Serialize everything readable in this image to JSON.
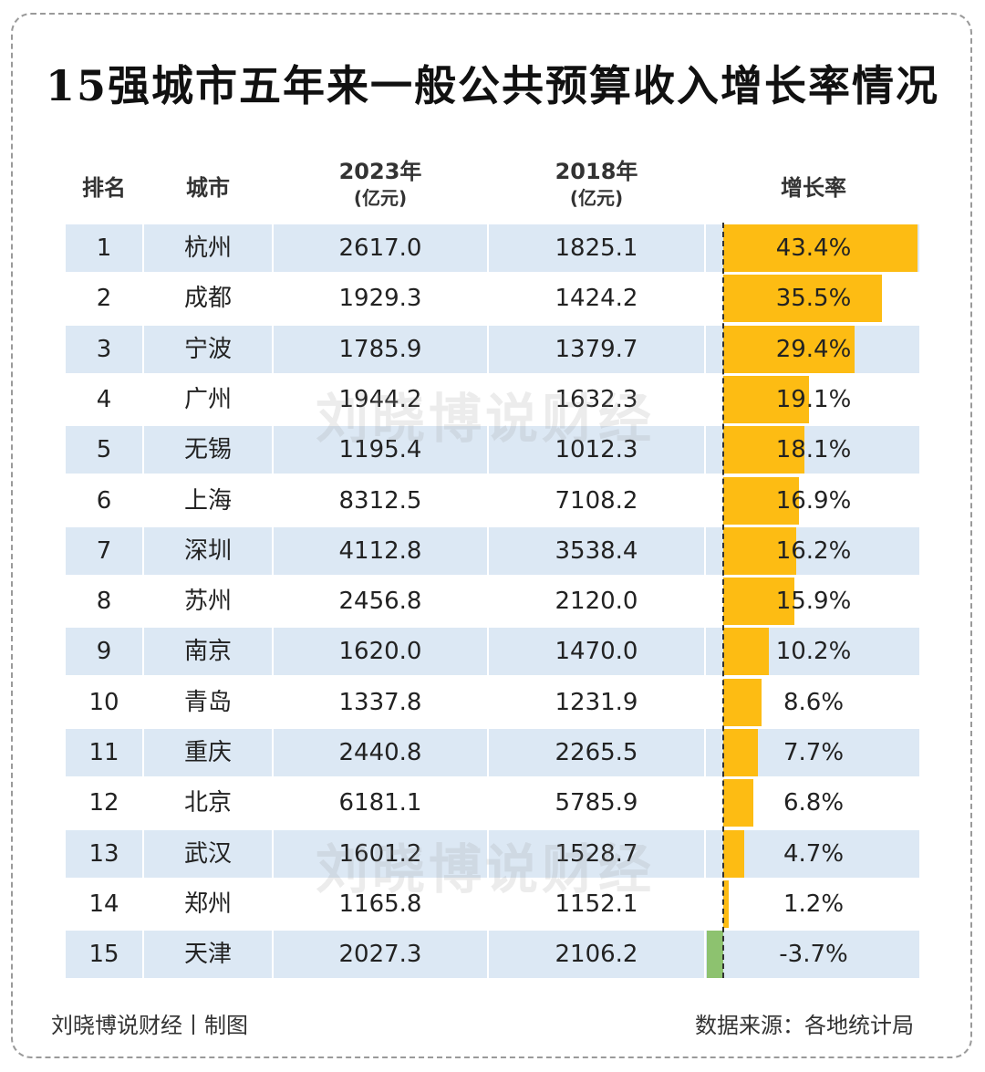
{
  "title": "15强城市五年来一般公共预算收入增长率情况",
  "headers": {
    "rank": "排名",
    "city": "城市",
    "y2023": "2023年",
    "y2023_unit": "(亿元)",
    "y2018": "2018年",
    "y2018_unit": "(亿元)",
    "growth": "增长率"
  },
  "watermark": "刘晓博说财经",
  "footer": {
    "left": "刘晓博说财经丨制图",
    "right": "数据来源：各地统计局"
  },
  "colors": {
    "positive_bar": "#fdbc13",
    "negative_bar": "#8dc26f",
    "row_band": "#dce8f4"
  },
  "chart_data": {
    "type": "bar",
    "title": "15强城市五年来一般公共预算收入增长率情况",
    "categories": [
      "杭州",
      "成都",
      "宁波",
      "广州",
      "无锡",
      "上海",
      "深圳",
      "苏州",
      "南京",
      "青岛",
      "重庆",
      "北京",
      "武汉",
      "郑州",
      "天津"
    ],
    "series": [
      {
        "name": "增长率",
        "values": [
          43.4,
          35.5,
          29.4,
          19.1,
          18.1,
          16.9,
          16.2,
          15.9,
          10.2,
          8.6,
          7.7,
          6.8,
          4.7,
          1.2,
          -3.7
        ]
      }
    ],
    "rows": [
      {
        "rank": "1",
        "city": "杭州",
        "v2023": "2617.0",
        "v2018": "1825.1",
        "growth": 43.4,
        "growth_label": "43.4%"
      },
      {
        "rank": "2",
        "city": "成都",
        "v2023": "1929.3",
        "v2018": "1424.2",
        "growth": 35.5,
        "growth_label": "35.5%"
      },
      {
        "rank": "3",
        "city": "宁波",
        "v2023": "1785.9",
        "v2018": "1379.7",
        "growth": 29.4,
        "growth_label": "29.4%"
      },
      {
        "rank": "4",
        "city": "广州",
        "v2023": "1944.2",
        "v2018": "1632.3",
        "growth": 19.1,
        "growth_label": "19.1%"
      },
      {
        "rank": "5",
        "city": "无锡",
        "v2023": "1195.4",
        "v2018": "1012.3",
        "growth": 18.1,
        "growth_label": "18.1%"
      },
      {
        "rank": "6",
        "city": "上海",
        "v2023": "8312.5",
        "v2018": "7108.2",
        "growth": 16.9,
        "growth_label": "16.9%"
      },
      {
        "rank": "7",
        "city": "深圳",
        "v2023": "4112.8",
        "v2018": "3538.4",
        "growth": 16.2,
        "growth_label": "16.2%"
      },
      {
        "rank": "8",
        "city": "苏州",
        "v2023": "2456.8",
        "v2018": "2120.0",
        "growth": 15.9,
        "growth_label": "15.9%"
      },
      {
        "rank": "9",
        "city": "南京",
        "v2023": "1620.0",
        "v2018": "1470.0",
        "growth": 10.2,
        "growth_label": "10.2%"
      },
      {
        "rank": "10",
        "city": "青岛",
        "v2023": "1337.8",
        "v2018": "1231.9",
        "growth": 8.6,
        "growth_label": "8.6%"
      },
      {
        "rank": "11",
        "city": "重庆",
        "v2023": "2440.8",
        "v2018": "2265.5",
        "growth": 7.7,
        "growth_label": "7.7%"
      },
      {
        "rank": "12",
        "city": "北京",
        "v2023": "6181.1",
        "v2018": "5785.9",
        "growth": 6.8,
        "growth_label": "6.8%"
      },
      {
        "rank": "13",
        "city": "武汉",
        "v2023": "1601.2",
        "v2018": "1528.7",
        "growth": 4.7,
        "growth_label": "4.7%"
      },
      {
        "rank": "14",
        "city": "郑州",
        "v2023": "1165.8",
        "v2018": "1152.1",
        "growth": 1.2,
        "growth_label": "1.2%"
      },
      {
        "rank": "15",
        "city": "天津",
        "v2023": "2027.3",
        "v2018": "2106.2",
        "growth": -3.7,
        "growth_label": "-3.7%"
      }
    ],
    "xlabel": "",
    "ylabel": "",
    "xlim": [
      -5,
      45
    ],
    "legend": "none",
    "grid": false
  }
}
